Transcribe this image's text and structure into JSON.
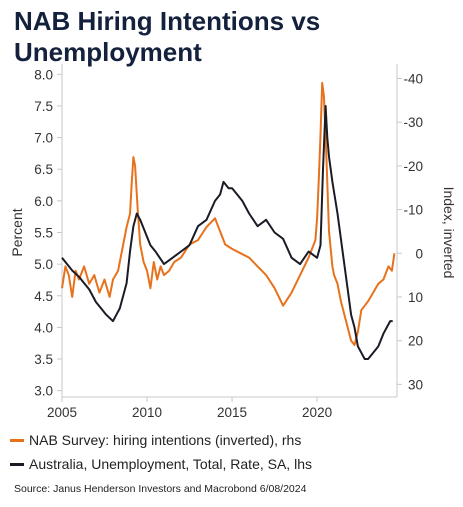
{
  "title": "NAB Hiring Intentions vs Unemployment",
  "source": "Source: Janus Henderson Investors and Macrobond  6/08/2024",
  "colors": {
    "orange": "#e8721c",
    "black": "#1b1b26",
    "axis": "#c8c8c8",
    "text": "#333333"
  },
  "chart_data": {
    "type": "line",
    "title": "NAB Hiring Intentions vs Unemployment",
    "xlabel": "",
    "ylabel": "Percent",
    "y2label": "Index, inverted",
    "xlim": [
      2005,
      2024.7
    ],
    "ylim": [
      2.9,
      8.1
    ],
    "y2lim": [
      32.9,
      -42.4
    ],
    "y2_inverted": true,
    "xticks": [
      "2005",
      "2010",
      "2015",
      "2020"
    ],
    "yticks": [
      "3.0",
      "3.5",
      "4.0",
      "4.5",
      "5.0",
      "5.5",
      "6.0",
      "6.5",
      "7.0",
      "7.5",
      "8.0"
    ],
    "y2ticks": [
      "30",
      "20",
      "10",
      "0",
      "-10",
      "-20",
      "-30",
      "-40"
    ],
    "grid": false,
    "legend_position": "bottom",
    "series": [
      {
        "name": "NAB Survey: hiring intentions (inverted), rhs",
        "axis": "right",
        "color": "#e8721c",
        "x": [
          2005.0,
          2005.2,
          2005.4,
          2005.6,
          2005.8,
          2006.0,
          2006.3,
          2006.6,
          2006.9,
          2007.2,
          2007.5,
          2007.8,
          2008.0,
          2008.3,
          2008.6,
          2008.8,
          2009.0,
          2009.1,
          2009.2,
          2009.3,
          2009.45,
          2009.6,
          2009.8,
          2010.0,
          2010.2,
          2010.4,
          2010.6,
          2010.8,
          2011.0,
          2011.3,
          2011.6,
          2012.0,
          2012.5,
          2013.0,
          2013.5,
          2014.0,
          2014.3,
          2014.6,
          2015.0,
          2015.5,
          2016.0,
          2016.5,
          2017.0,
          2017.5,
          2018.0,
          2018.5,
          2019.0,
          2019.5,
          2019.9,
          2020.0,
          2020.1,
          2020.2,
          2020.3,
          2020.4,
          2020.55,
          2020.7,
          2020.9,
          2021.0,
          2021.2,
          2021.4,
          2021.6,
          2021.8,
          2022.0,
          2022.2,
          2022.4,
          2022.6,
          2022.8,
          2023.0,
          2023.3,
          2023.6,
          2023.9,
          2024.2,
          2024.4,
          2024.55
        ],
        "values": [
          8,
          3,
          5,
          10,
          4,
          6,
          3,
          7,
          5,
          9,
          6,
          10,
          6,
          4,
          -2,
          -6,
          -9,
          -16,
          -22,
          -20,
          -10,
          -2,
          2,
          4,
          8,
          2,
          6,
          3,
          5,
          4,
          2,
          1,
          -2,
          -3,
          -6,
          -8,
          -5,
          -2,
          -1,
          0,
          1,
          3,
          5,
          8,
          12,
          9,
          5,
          1,
          -3,
          -8,
          -17,
          -27,
          -39,
          -36,
          -22,
          -5,
          3,
          5,
          7,
          11,
          14,
          17,
          20,
          21,
          18,
          13,
          12,
          11,
          9,
          7,
          6,
          3,
          4,
          0
        ]
      },
      {
        "name": "Australia, Unemployment, Total, Rate, SA, lhs",
        "axis": "left",
        "color": "#1b1b26",
        "x": [
          2005.0,
          2005.3,
          2005.6,
          2006.0,
          2006.3,
          2006.6,
          2007.0,
          2007.3,
          2007.6,
          2008.0,
          2008.2,
          2008.4,
          2008.6,
          2008.8,
          2009.0,
          2009.2,
          2009.4,
          2009.6,
          2009.9,
          2010.2,
          2010.5,
          2011.0,
          2011.5,
          2012.0,
          2012.5,
          2013.0,
          2013.5,
          2014.0,
          2014.3,
          2014.5,
          2014.8,
          2015.0,
          2015.3,
          2015.6,
          2016.0,
          2016.5,
          2017.0,
          2017.5,
          2018.0,
          2018.5,
          2019.0,
          2019.5,
          2020.0,
          2020.2,
          2020.35,
          2020.5,
          2020.6,
          2020.7,
          2020.9,
          2021.2,
          2021.5,
          2021.8,
          2022.0,
          2022.2,
          2022.4,
          2022.6,
          2022.8,
          2023.0,
          2023.3,
          2023.6,
          2023.9,
          2024.1,
          2024.3,
          2024.45
        ],
        "values": [
          5.1,
          5.0,
          4.9,
          4.8,
          4.7,
          4.6,
          4.4,
          4.3,
          4.2,
          4.1,
          4.2,
          4.3,
          4.5,
          4.7,
          5.2,
          5.6,
          5.8,
          5.7,
          5.5,
          5.3,
          5.2,
          5.0,
          5.1,
          5.2,
          5.3,
          5.6,
          5.7,
          6.0,
          6.1,
          6.3,
          6.2,
          6.2,
          6.1,
          6.0,
          5.8,
          5.6,
          5.7,
          5.5,
          5.4,
          5.1,
          5.0,
          5.2,
          5.1,
          5.3,
          6.5,
          7.5,
          7.0,
          6.7,
          6.3,
          5.8,
          5.2,
          4.6,
          4.2,
          4.0,
          3.7,
          3.6,
          3.5,
          3.5,
          3.6,
          3.7,
          3.9,
          4.0,
          4.1,
          4.1
        ]
      }
    ]
  }
}
